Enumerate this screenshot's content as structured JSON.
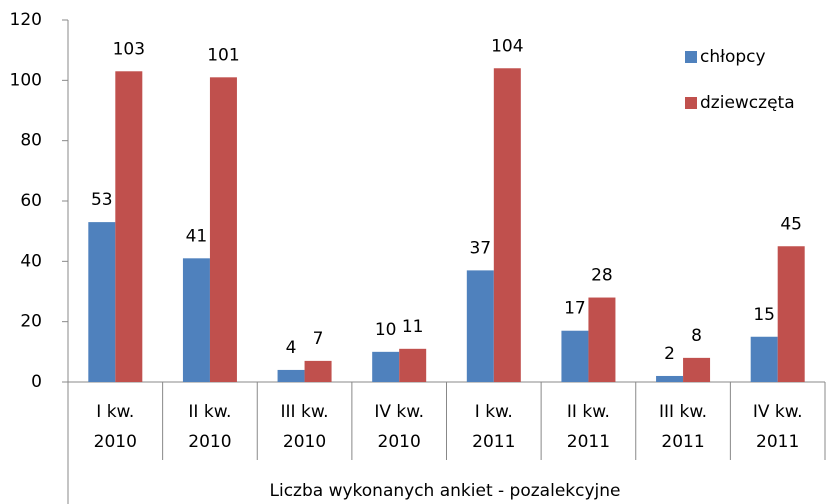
{
  "chart_data": {
    "type": "bar",
    "categories": [
      "I kw.\n2010",
      "II kw.\n2010",
      "III kw.\n2010",
      "IV kw.\n2010",
      "I kw.\n2011",
      "II kw.\n2011",
      "III kw.\n2011",
      "IV kw.\n2011"
    ],
    "series": [
      {
        "name": "chłopcy",
        "color": "#4f81bd",
        "values": [
          53,
          41,
          4,
          10,
          37,
          17,
          2,
          15
        ]
      },
      {
        "name": "dziewczęta",
        "color": "#c0504d",
        "values": [
          103,
          101,
          7,
          11,
          104,
          28,
          8,
          45
        ]
      }
    ],
    "xlabel": "Liczba wykonanych ankiet - pozalekcyjne",
    "ylim": [
      0,
      120
    ],
    "yticks": [
      0,
      20,
      40,
      60,
      80,
      100,
      120
    ],
    "legend": "upper right"
  }
}
